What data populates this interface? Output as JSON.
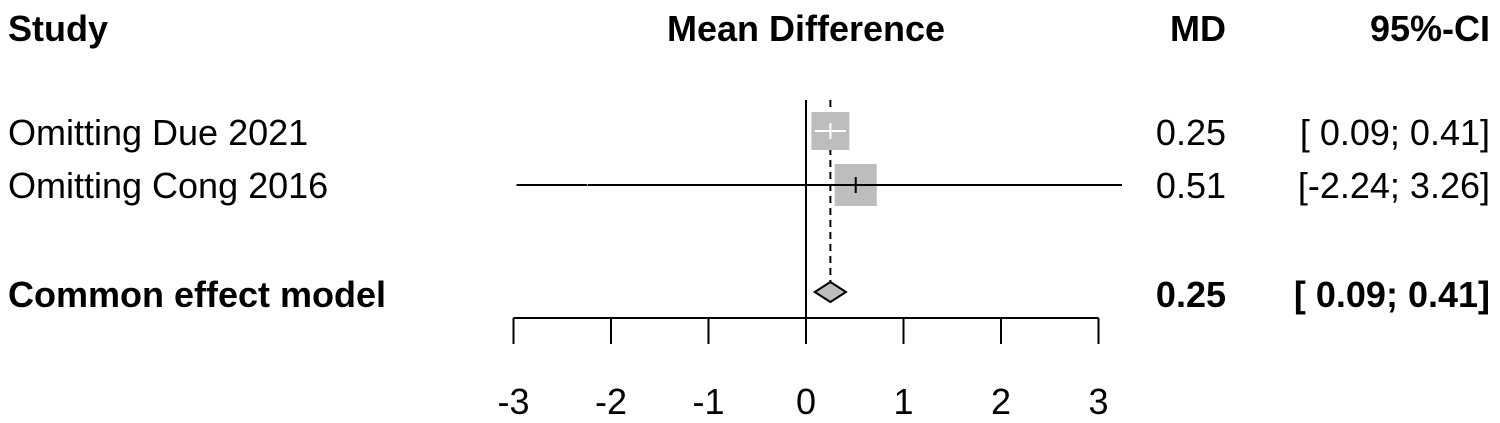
{
  "chart_data": {
    "type": "forest",
    "headers": {
      "study": "Study",
      "plot": "Mean Difference",
      "md": "MD",
      "ci": "95%-CI"
    },
    "studies": [
      {
        "label": "Omitting Due 2021",
        "md": 0.25,
        "lower": 0.09,
        "upper": 0.41,
        "md_text": "0.25",
        "ci_text": "[ 0.09; 0.41]",
        "weight": "small"
      },
      {
        "label": "Omitting Cong 2016",
        "md": 0.51,
        "lower": -2.24,
        "upper": 3.26,
        "md_text": "0.51",
        "ci_text": "[-2.24; 3.26]",
        "weight": "large"
      }
    ],
    "pooled": {
      "label": "Common effect model",
      "md": 0.25,
      "lower": 0.09,
      "upper": 0.41,
      "md_text": "0.25",
      "ci_text": "[ 0.09; 0.41]"
    },
    "x_axis": {
      "ticks": [
        -3,
        -2,
        -1,
        0,
        1,
        2,
        3
      ],
      "tick_labels": [
        "-3",
        "-2",
        "-1",
        "0",
        "1",
        "2",
        "3"
      ],
      "range": [
        -3,
        3
      ]
    },
    "reference_line": 0,
    "colors": {
      "box": "#bdbdbd",
      "diamond": "#bdbdbd",
      "line": "#000000"
    }
  }
}
